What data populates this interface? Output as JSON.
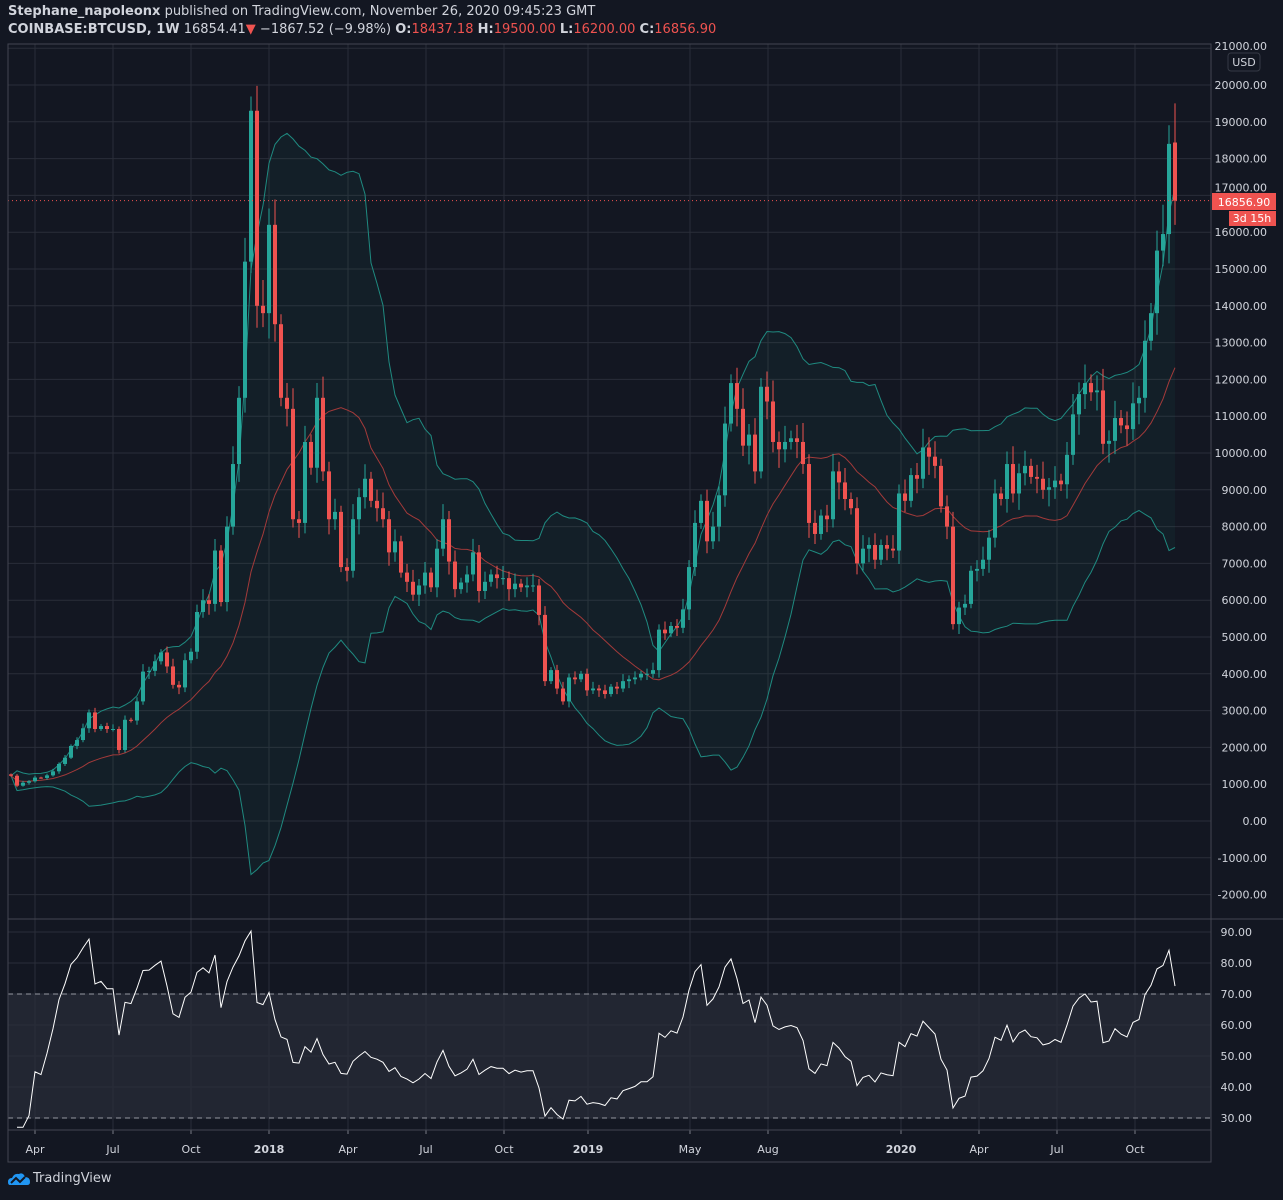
{
  "header": {
    "author": "Stephane_napoleonx",
    "published": "published on TradingView.com, November 26, 2020 09:45:23 GMT",
    "symbol": "COINBASE:BTCUSD, 1W",
    "last": "16854.41",
    "change": "−1867.52 (−9.98%)",
    "o_label": "O:",
    "o": "18437.18",
    "h_label": "H:",
    "h": "19500.00",
    "l_label": "L:",
    "l": "16200.00",
    "c_label": "C:",
    "c": "16856.90"
  },
  "price_axis": {
    "currency": "USD",
    "last_price_label": "16856.90",
    "countdown": "3d 15h"
  },
  "brand": "TradingView",
  "colors": {
    "background": "#131722",
    "up": "#26a69a",
    "down": "#ef5350",
    "grid": "#2a2e39",
    "bands": "#1f8a80",
    "basis": "#a33a3a",
    "rsi": "#ffffff"
  },
  "chart_data": [
    {
      "type": "candlestick",
      "interval": "1W",
      "indicators": [
        "Bollinger Bands (20, 2)"
      ],
      "y_ticks": [
        -2000,
        -1000,
        0,
        1000,
        2000,
        3000,
        4000,
        5000,
        6000,
        7000,
        8000,
        9000,
        10000,
        11000,
        12000,
        13000,
        14000,
        15000,
        16000,
        17000,
        18000,
        19000,
        20000,
        21000
      ],
      "ylim": [
        -2600,
        21000
      ],
      "x_ticks": [
        "Apr",
        "Jul",
        "Oct",
        "2018",
        "Apr",
        "Jul",
        "Oct",
        "2019",
        "May",
        "Aug",
        "2020",
        "Apr",
        "Jul",
        "Oct"
      ],
      "grid": true,
      "last_candle": {
        "open": 18437.18,
        "high": 19500.0,
        "low": 16200.0,
        "close": 16856.9
      },
      "weekly_closes_by_month": {
        "2017-03": [
          1230,
          960,
          1040,
          1080
        ],
        "2017-04": [
          1180,
          1170,
          1240,
          1350
        ],
        "2017-05": [
          1550,
          1720,
          2040,
          2200,
          2520
        ],
        "2017-06": [
          2950,
          2500,
          2580,
          2500
        ],
        "2017-07": [
          2500,
          1930,
          2750,
          2730,
          3250
        ],
        "2017-08": [
          4060,
          4080,
          4340,
          4580
        ],
        "2017-09": [
          4200,
          3700,
          3630,
          4370
        ],
        "2017-10": [
          4600,
          5680,
          6000,
          5900,
          7350
        ],
        "2017-11": [
          5950,
          8000,
          9700,
          11500
        ],
        "2017-12": [
          15200,
          19300,
          14000,
          13800
        ],
        "2018-01": [
          16200,
          13500,
          11500,
          11200,
          8200
        ],
        "2018-02": [
          8100,
          10300,
          9600,
          11500
        ],
        "2018-03": [
          9500,
          8200,
          8400,
          6900
        ],
        "2018-04": [
          6800,
          8200,
          8800,
          9300,
          8700
        ],
        "2018-05": [
          8500,
          8200,
          7300,
          7600
        ],
        "2018-06": [
          6750,
          6500,
          6150,
          6400
        ],
        "2018-07": [
          6750,
          6350,
          7400,
          8200,
          7050
        ],
        "2018-08": [
          6300,
          6480,
          6700,
          7300
        ],
        "2018-09": [
          6250,
          6500,
          6700,
          6600
        ],
        "2018-10": [
          6600,
          6300,
          6450,
          6350,
          6400
        ],
        "2018-11": [
          6400,
          5600,
          3800,
          4100
        ],
        "2018-12": [
          3600,
          3250,
          3900,
          3850,
          4000
        ],
        "2019-01": [
          3550,
          3600,
          3550,
          3450
        ],
        "2019-02": [
          3650,
          3600,
          3800,
          3850
        ],
        "2019-03": [
          3900,
          4000,
          4000,
          4100
        ],
        "2019-04": [
          5200,
          5100,
          5300,
          5250,
          5750
        ],
        "2019-05": [
          6900,
          8100,
          8700,
          7600
        ],
        "2019-06": [
          8000,
          8850,
          10800,
          11900
        ],
        "2019-07": [
          11200,
          10200,
          10500,
          9500,
          11800
        ],
        "2019-08": [
          11400,
          10300,
          10100,
          10300
        ],
        "2019-09": [
          10400,
          10300,
          9700,
          8100,
          7800
        ],
        "2019-10": [
          8300,
          8200,
          9500,
          9200
        ],
        "2019-11": [
          8750,
          8500,
          7000,
          7400
        ],
        "2019-12": [
          7500,
          7100,
          7500,
          7400,
          7350
        ],
        "2020-01": [
          8900,
          8700,
          9400,
          9300
        ],
        "2020-02": [
          10150,
          9900,
          9650,
          8550
        ],
        "2020-03": [
          8000,
          5350,
          5800,
          5900,
          6800
        ],
        "2020-04": [
          6850,
          7100,
          7700,
          8900
        ],
        "2020-05": [
          8750,
          9700,
          8900,
          9450
        ],
        "2020-06": [
          9650,
          9350,
          9300,
          9000,
          9070
        ],
        "2020-07": [
          9250,
          9150,
          9950,
          11050
        ],
        "2020-08": [
          11600,
          11900,
          11650,
          11700,
          10250
        ],
        "2020-09": [
          10330,
          10950,
          10750,
          10650
        ],
        "2020-10": [
          11350,
          11500,
          13050,
          13800
        ],
        "2020-11": [
          15500,
          15950,
          18400,
          16856.9
        ]
      }
    },
    {
      "type": "line",
      "indicator": "RSI",
      "y_ticks": [
        30,
        40,
        50,
        60,
        70,
        80,
        90
      ],
      "ylim": [
        26,
        94
      ],
      "bands": [
        30,
        70
      ]
    }
  ]
}
